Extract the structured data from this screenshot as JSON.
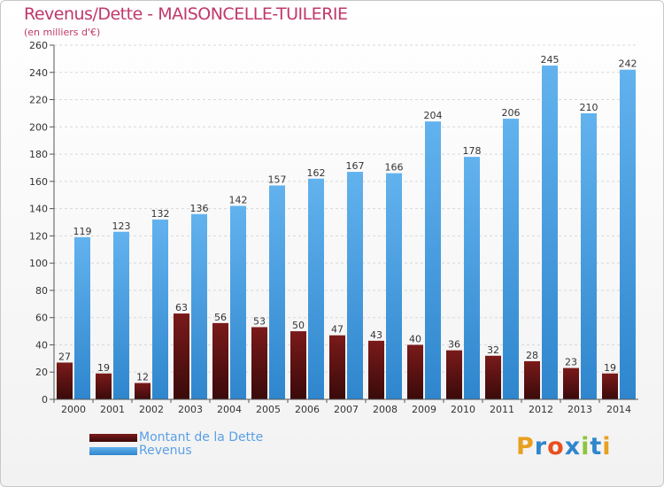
{
  "header": {
    "title": "Revenus/Dette - MAISONCELLE-TUILERIE",
    "subtitle": "(en milliers d'€)"
  },
  "colors": {
    "dette_top": "#7a1a1a",
    "dette_bottom": "#3a0a0a",
    "revenus_top": "#62b2ee",
    "revenus_bottom": "#2f86cd",
    "title": "#c0386b",
    "legend_text": "#5aa0e6"
  },
  "chart_data": {
    "type": "bar",
    "title": "Revenus/Dette - MAISONCELLE-TUILERIE",
    "ylabel": "(en milliers d'€)",
    "xlabel": "",
    "categories": [
      "2000",
      "2001",
      "2002",
      "2003",
      "2004",
      "2005",
      "2006",
      "2007",
      "2008",
      "2009",
      "2010",
      "2011",
      "2012",
      "2013",
      "2014"
    ],
    "series": [
      {
        "name": "Montant de la Dette",
        "values": [
          27,
          19,
          12,
          63,
          56,
          53,
          50,
          47,
          43,
          40,
          36,
          32,
          28,
          23,
          19
        ]
      },
      {
        "name": "Revenus",
        "values": [
          119,
          123,
          132,
          136,
          142,
          157,
          162,
          167,
          166,
          204,
          178,
          206,
          245,
          210,
          242
        ]
      }
    ],
    "ylim": [
      0,
      260
    ],
    "yticks": [
      0,
      20,
      40,
      60,
      80,
      100,
      120,
      140,
      160,
      180,
      200,
      220,
      240,
      260
    ],
    "grid": true,
    "legend": "bottom-left"
  },
  "legend": {
    "dette_label": "Montant de la Dette",
    "revenus_label": "Revenus"
  },
  "logo": {
    "letters": [
      "P",
      "r",
      "o",
      "x",
      "i",
      "t",
      "i"
    ],
    "colors": [
      "#e8a020",
      "#2f86cd",
      "#e85020",
      "#2f86cd",
      "#8cc63e",
      "#2f86cd",
      "#e8a020"
    ]
  }
}
